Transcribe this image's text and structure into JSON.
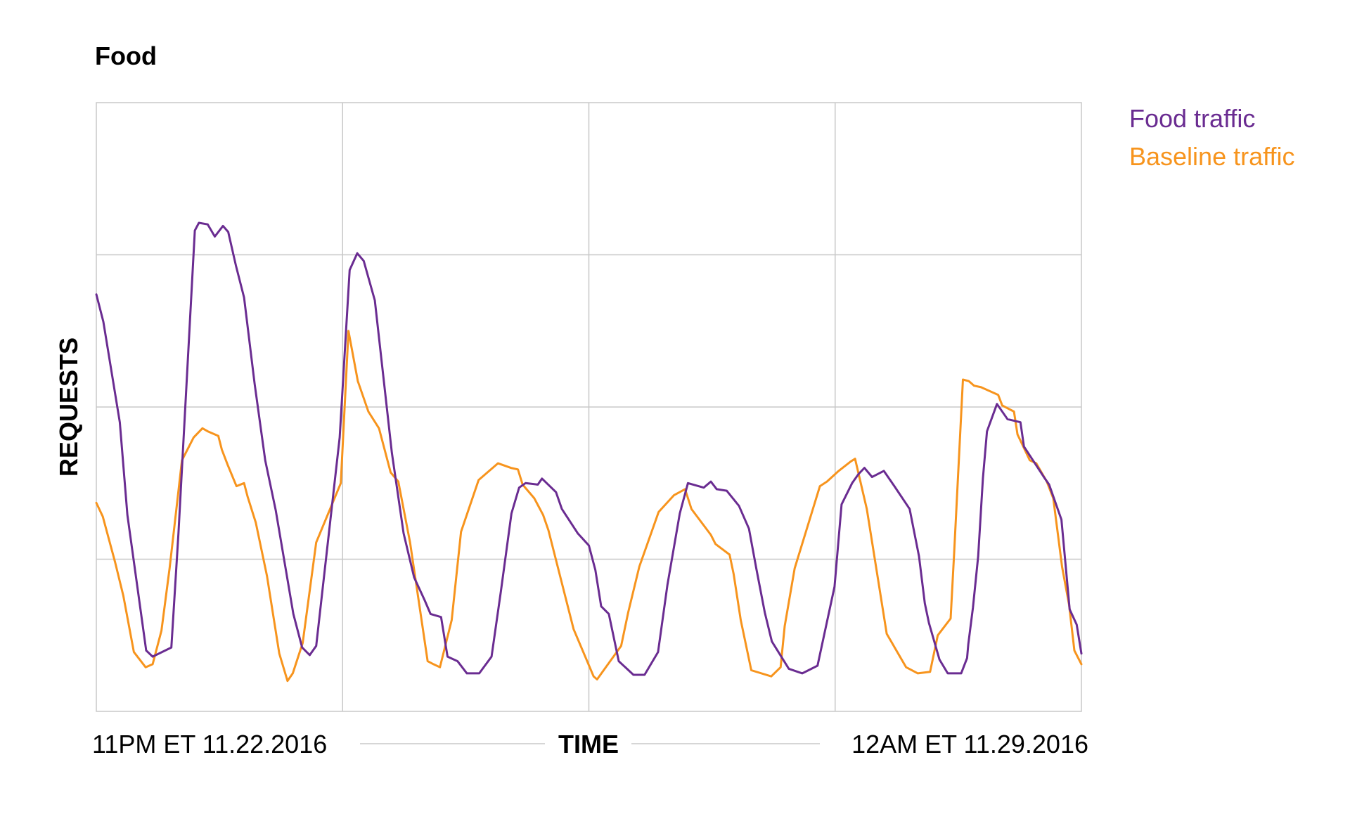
{
  "chart_data": {
    "type": "line",
    "title": "Food",
    "xlabel": "TIME",
    "ylabel": "REQUESTS",
    "x_tick_labels": [
      "11PM ET 11.22.2016",
      "12AM ET 11.29.2016"
    ],
    "xlim": [
      0,
      168
    ],
    "ylim": [
      0,
      4
    ],
    "x_ticks_grid": [
      42,
      84,
      126
    ],
    "y_ticks_grid": [
      1,
      2,
      3
    ],
    "grid": true,
    "y_tick_labels_visible": false,
    "legend_position": "top-right",
    "x_unit": "hours since 11PM ET 11.22.2016",
    "y_unit": "relative request level (unlabeled axis)",
    "series": [
      {
        "name": "Food traffic",
        "color": "#6a2c91",
        "x": [
          0,
          1.2,
          4,
          5.3,
          8.5,
          9.6,
          12.8,
          14,
          16.8,
          17.5,
          19,
          20.2,
          21.6,
          22.5,
          23.8,
          25.2,
          27,
          28.8,
          30.6,
          33.6,
          35.1,
          36.4,
          37.5,
          41.5,
          43.2,
          44.5,
          45.6,
          47.5,
          50.4,
          52.4,
          54.2,
          56,
          57,
          58.8,
          59.9,
          61.6,
          63.2,
          65.3,
          67.4,
          69,
          70.8,
          72.1,
          73.2,
          75.3,
          76,
          78.4,
          79.4,
          82.1,
          84,
          85.1,
          86.1,
          87.4,
          89.1,
          91.6,
          93.5,
          95.8,
          97.4,
          99.5,
          100.9,
          103.6,
          104.8,
          105.8,
          107.5,
          109.6,
          111.3,
          112.6,
          114,
          115.2,
          118.1,
          120.4,
          123,
          125.9,
          127.1,
          128.9,
          130,
          131,
          132.3,
          134.3,
          136.1,
          138.7,
          140.3,
          141.3,
          142,
          143.8,
          145.2,
          146.3,
          147.5,
          148.5,
          148.7,
          149.5,
          150.4,
          151.2,
          151.9,
          153.6,
          155.4,
          157.6,
          158.2,
          161.6,
          162.5,
          164.6,
          166,
          167.2,
          168
        ],
        "y": [
          2.74,
          2.56,
          1.9,
          1.29,
          0.4,
          0.36,
          0.42,
          1.17,
          3.16,
          3.21,
          3.2,
          3.12,
          3.19,
          3.15,
          2.93,
          2.72,
          2.15,
          1.65,
          1.32,
          0.64,
          0.42,
          0.37,
          0.43,
          1.8,
          2.9,
          3.01,
          2.96,
          2.7,
          1.7,
          1.17,
          0.88,
          0.73,
          0.64,
          0.62,
          0.36,
          0.33,
          0.25,
          0.25,
          0.36,
          0.79,
          1.3,
          1.47,
          1.5,
          1.49,
          1.53,
          1.44,
          1.33,
          1.17,
          1.09,
          0.93,
          0.69,
          0.64,
          0.33,
          0.24,
          0.24,
          0.39,
          0.83,
          1.3,
          1.5,
          1.47,
          1.51,
          1.46,
          1.45,
          1.35,
          1.2,
          0.93,
          0.65,
          0.46,
          0.28,
          0.25,
          0.3,
          0.82,
          1.36,
          1.5,
          1.56,
          1.6,
          1.54,
          1.58,
          1.48,
          1.33,
          1.02,
          0.71,
          0.58,
          0.34,
          0.25,
          0.25,
          0.25,
          0.35,
          0.44,
          0.68,
          1.02,
          1.53,
          1.84,
          2.02,
          1.92,
          1.9,
          1.74,
          1.54,
          1.49,
          1.26,
          0.67,
          0.57,
          0.38
        ]
      },
      {
        "name": "Baseline traffic",
        "color": "#f7941d",
        "x": [
          0,
          1.1,
          3.2,
          4.6,
          6.4,
          8.4,
          9.6,
          11.1,
          12.5,
          14.6,
          16.6,
          18.1,
          19,
          20.8,
          21.4,
          22.4,
          23.9,
          25.2,
          25.8,
          27.2,
          29.1,
          31.2,
          32.6,
          33.5,
          35.2,
          37.5,
          41.7,
          43,
          44.6,
          46.4,
          48.2,
          50.2,
          51.5,
          53.5,
          56.5,
          57.5,
          58.6,
          60.6,
          62.2,
          65.2,
          68.5,
          70.7,
          71.9,
          72.7,
          74.7,
          76.2,
          77.1,
          81.4,
          84.8,
          85.4,
          89.5,
          90.7,
          92.6,
          95.9,
          98.5,
          100.4,
          101.5,
          104.8,
          105.6,
          108,
          108.7,
          109.9,
          111.7,
          115.1,
          116.7,
          117.4,
          119.1,
          123.4,
          124.6,
          126.6,
          128.6,
          129.4,
          131.4,
          134.8,
          138.1,
          140.1,
          142.2,
          143.5,
          145.7,
          146.3,
          147.8,
          148.8,
          149.1,
          149.7,
          150.9,
          153.8,
          154.5,
          156.5,
          157.1,
          159.2,
          160.3,
          162.1,
          163.2,
          164.7,
          165.9,
          166.8,
          168
        ],
        "y": [
          1.37,
          1.28,
          0.98,
          0.76,
          0.39,
          0.29,
          0.31,
          0.53,
          0.94,
          1.65,
          1.8,
          1.86,
          1.84,
          1.81,
          1.72,
          1.62,
          1.48,
          1.5,
          1.41,
          1.24,
          0.89,
          0.38,
          0.2,
          0.25,
          0.45,
          1.11,
          1.5,
          2.5,
          2.17,
          1.97,
          1.86,
          1.57,
          1.51,
          1.11,
          0.33,
          0.31,
          0.29,
          0.6,
          1.18,
          1.52,
          1.63,
          1.6,
          1.59,
          1.49,
          1.4,
          1.29,
          1.19,
          0.54,
          0.23,
          0.21,
          0.43,
          0.65,
          0.95,
          1.31,
          1.42,
          1.46,
          1.33,
          1.16,
          1.1,
          1.03,
          0.9,
          0.6,
          0.27,
          0.23,
          0.29,
          0.56,
          0.94,
          1.48,
          1.51,
          1.58,
          1.64,
          1.66,
          1.33,
          0.51,
          0.29,
          0.25,
          0.26,
          0.5,
          0.61,
          1.04,
          2.18,
          2.17,
          2.16,
          2.14,
          2.13,
          2.08,
          2.01,
          1.97,
          1.82,
          1.65,
          1.63,
          1.51,
          1.4,
          0.95,
          0.7,
          0.4,
          0.31
        ]
      }
    ]
  }
}
